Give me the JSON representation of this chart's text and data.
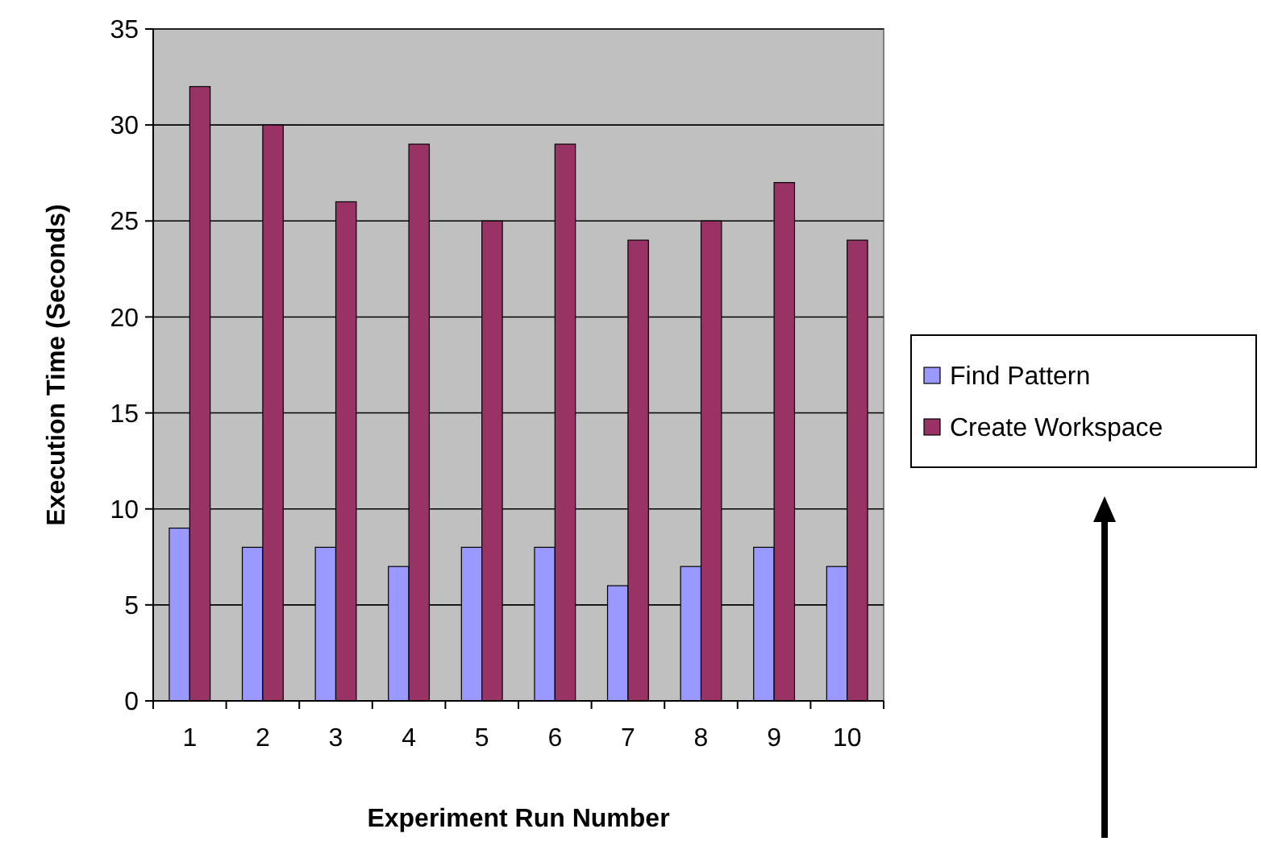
{
  "chart_data": {
    "type": "bar",
    "xlabel": "Experiment Run Number",
    "ylabel": "Execution Time (Seconds)",
    "categories": [
      "1",
      "2",
      "3",
      "4",
      "5",
      "6",
      "7",
      "8",
      "9",
      "10"
    ],
    "series": [
      {
        "name": "Find Pattern",
        "color": "#9999ff",
        "values": [
          9,
          8,
          8,
          7,
          8,
          8,
          6,
          7,
          8,
          7
        ]
      },
      {
        "name": "Create Workspace",
        "color": "#993366",
        "values": [
          32,
          30,
          26,
          29,
          25,
          29,
          24,
          25,
          27,
          24
        ]
      }
    ],
    "ylim": [
      0,
      35
    ],
    "yticks": [
      0,
      5,
      10,
      15,
      20,
      25,
      30,
      35
    ],
    "grid": "y",
    "legend": "right"
  }
}
